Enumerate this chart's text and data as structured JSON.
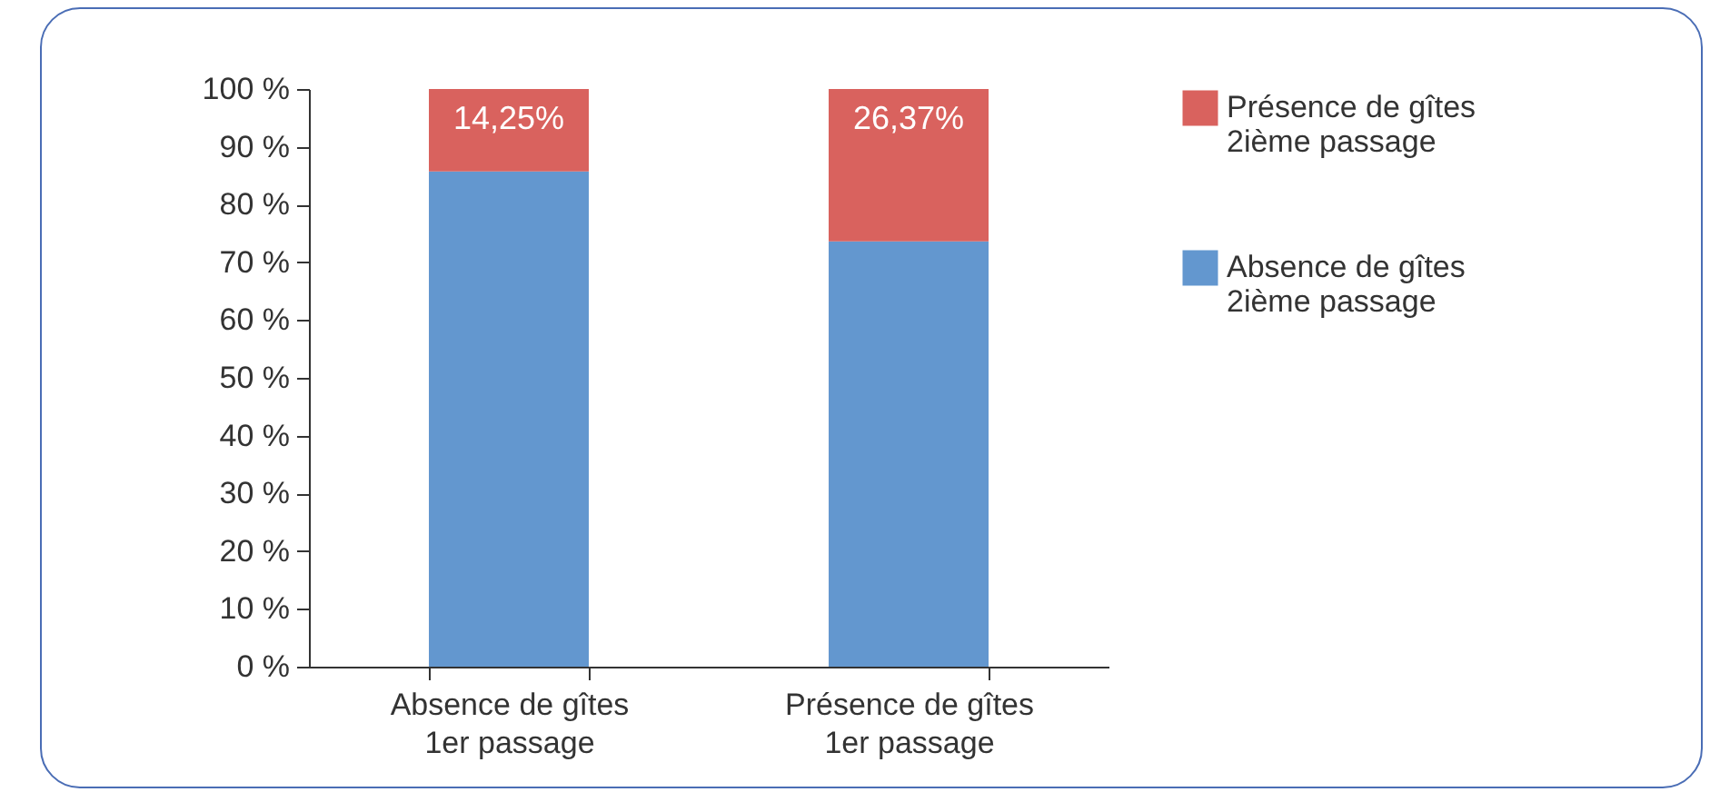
{
  "chart_data": {
    "type": "bar",
    "stacked": true,
    "categories": [
      "Absence de gîtes\n1er passage",
      "Présence de gîtes\n1er passage"
    ],
    "series": [
      {
        "name": "Absence de gîtes\n2ième passage",
        "color": "#6397cf",
        "values": [
          85.75,
          73.63
        ]
      },
      {
        "name": "Présence de gîtes\n2ième passage",
        "color": "#d9625e",
        "values": [
          14.25,
          26.37
        ],
        "value_labels": [
          "14,25%",
          "26,37%"
        ]
      }
    ],
    "ylim": [
      0,
      100
    ],
    "yticks": [
      {
        "value": 0,
        "label": "0 %"
      },
      {
        "value": 10,
        "label": "10 %"
      },
      {
        "value": 20,
        "label": "20 %"
      },
      {
        "value": 30,
        "label": "30 %"
      },
      {
        "value": 40,
        "label": "40 %"
      },
      {
        "value": 50,
        "label": "50 %"
      },
      {
        "value": 60,
        "label": "60 %"
      },
      {
        "value": 70,
        "label": "70 %"
      },
      {
        "value": 80,
        "label": "80 %"
      },
      {
        "value": 90,
        "label": "90 %"
      },
      {
        "value": 100,
        "label": "100 %"
      }
    ],
    "grid": false,
    "legend": "right"
  }
}
